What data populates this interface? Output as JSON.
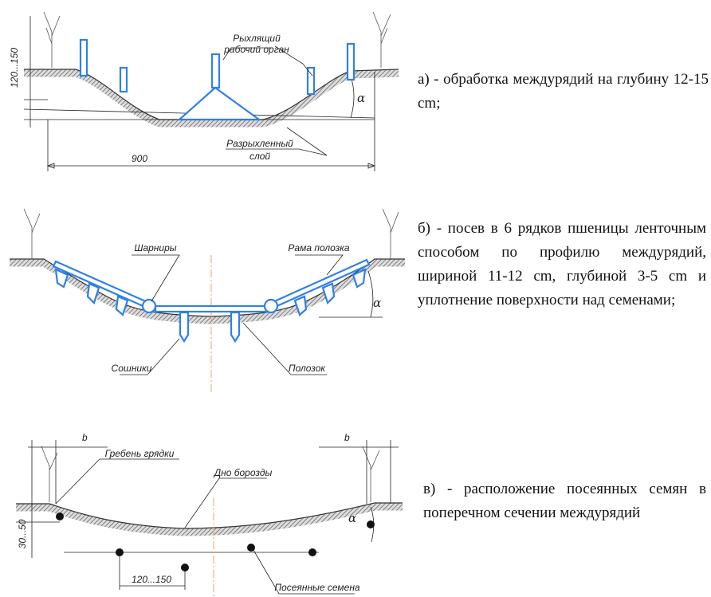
{
  "panels": [
    {
      "labels": [
        "120...150",
        "Рыхлящий",
        "рабочий орган",
        "α",
        "900",
        "Разрыхленный",
        "слой"
      ],
      "caption": "а) - обработка междурядий на глубину 12-15 cm;"
    },
    {
      "labels": [
        "Шарниры",
        "Рама полозка",
        "α",
        "Сошники",
        "Полозок"
      ],
      "caption": "б) - посев в 6 рядков пшеницы ленточным способом по профилю междурядий, шириной 11-12 cm, глубиной 3-5 cm и уплотнение поверхности над семенами;"
    },
    {
      "labels": [
        "b",
        "b",
        "Гребень грядки",
        "Дно борозды",
        "30...50",
        "α",
        "120...150",
        "Посеянные семена"
      ],
      "caption": "в) - расположение посеянных семян в поперечном сечении междурядий"
    }
  ]
}
